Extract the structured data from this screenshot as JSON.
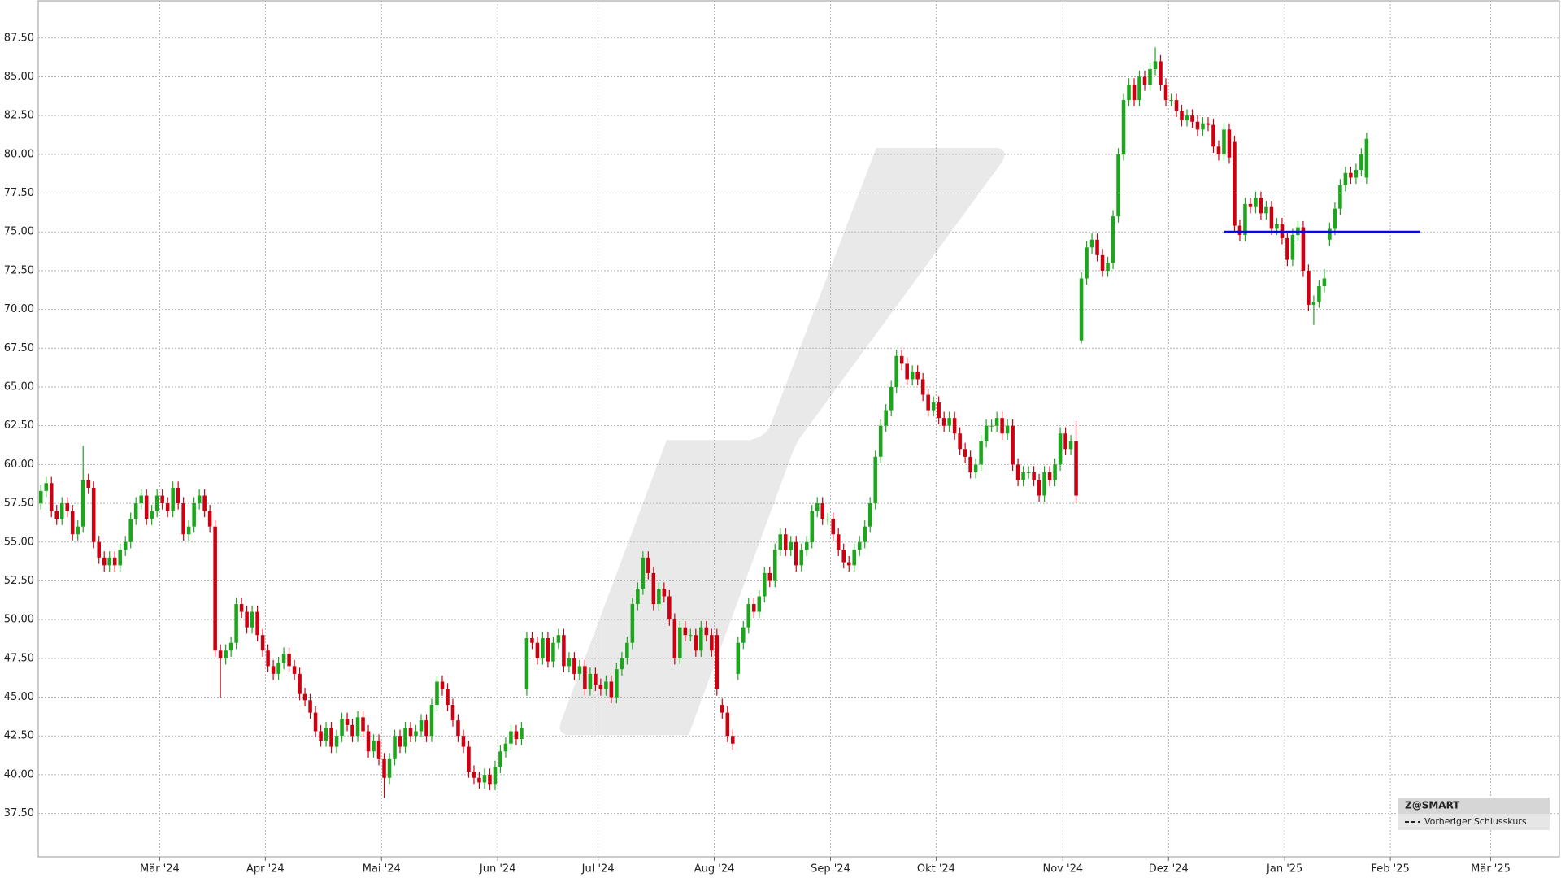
{
  "chart_data": {
    "type": "candlestick",
    "open": [
      57.5,
      58.3,
      58.8,
      57.0,
      56.5,
      57.5,
      57.0,
      55.5,
      56.0,
      59.0,
      58.5,
      55.0,
      54.0,
      53.5,
      54.0,
      53.5,
      54.5,
      55.0,
      56.5,
      57.5,
      58.0,
      56.5,
      57.0,
      58.0,
      57.5,
      57.0,
      58.5,
      57.5,
      55.5,
      56.0,
      57.5,
      58.0,
      57.0,
      56.0,
      48.0,
      47.5,
      48.0,
      48.5,
      51.0,
      50.5,
      49.5,
      50.5,
      49.0,
      48.0,
      47.0,
      46.5,
      47.2,
      47.8,
      47.0,
      46.5,
      45.2,
      44.8,
      44.0,
      42.8,
      42.2,
      43.0,
      41.8,
      42.5,
      43.6,
      43.2,
      42.5,
      43.7,
      42.8,
      41.5,
      42.2,
      41.0,
      39.8,
      41.0,
      42.5,
      41.8,
      43.0,
      42.5,
      42.8,
      43.5,
      42.5,
      44.5,
      46.0,
      45.5,
      44.5,
      43.5,
      42.5,
      41.8,
      40.2,
      39.8,
      39.5,
      40.0,
      39.4,
      40.5,
      41.5,
      42.0,
      42.8,
      42.3,
      45.5,
      48.8,
      48.5,
      47.5,
      48.8,
      47.3,
      48.5,
      49.0,
      47.0,
      47.5,
      46.5,
      47.0,
      45.5,
      46.5,
      45.8,
      45.5,
      46.0,
      45.0,
      46.8,
      47.5,
      48.5,
      51.0,
      52.0,
      54.0,
      53.0,
      51.0,
      52.0,
      51.5,
      50.0,
      47.5,
      49.5,
      49.0,
      49.0,
      48.0,
      49.5,
      49.0,
      49.0,
      44.5,
      44.0,
      42.5,
      46.5,
      48.5,
      49.5,
      51.0,
      50.5,
      51.5,
      53.0,
      52.5,
      54.5,
      55.5,
      54.5,
      55.0,
      53.5,
      54.5,
      55.0,
      57.0,
      57.5,
      56.5,
      56.5,
      55.5,
      54.5,
      53.7,
      53.5,
      54.5,
      55.0,
      56.0,
      57.5,
      60.5,
      62.5,
      63.5,
      65.0,
      67.0,
      66.5,
      65.5,
      66.0,
      65.5,
      64.5,
      63.5,
      64.0,
      63.0,
      62.5,
      63.0,
      62.0,
      61.0,
      60.5,
      59.5,
      60.0,
      61.5,
      62.5,
      62.5,
      63.0,
      62.0,
      62.5,
      60.0,
      59.0,
      59.5,
      59.5,
      59.0,
      58.0,
      59.5,
      59.0,
      60.0,
      62.0,
      61.0,
      61.5,
      68.0,
      72.0,
      74.0,
      74.5,
      73.5,
      72.5,
      73.0,
      76.0,
      80.0,
      83.5,
      84.5,
      83.5,
      85.0,
      84.5,
      85.5,
      86.0,
      84.5,
      83.5,
      83.5,
      82.8,
      82.2,
      82.5,
      82.1,
      81.6,
      82.0,
      81.9,
      80.5,
      80.0,
      81.6,
      80.8,
      75.4,
      74.8,
      76.8,
      76.6,
      77.2,
      76.2,
      76.6,
      75.2,
      75.5,
      74.6,
      73.2,
      74.8,
      75.3,
      72.5,
      70.3,
      70.5,
      71.5,
      74.5,
      75.2,
      76.5,
      78.0,
      78.8,
      78.5,
      79.0,
      78.5
    ],
    "high": [
      58.7,
      59.2,
      59.2,
      57.4,
      57.9,
      57.9,
      57.4,
      56.4,
      61.2,
      59.4,
      58.9,
      55.4,
      54.4,
      54.4,
      54.4,
      54.9,
      55.4,
      56.9,
      57.9,
      58.4,
      58.4,
      57.4,
      58.4,
      58.4,
      57.9,
      58.9,
      58.9,
      57.9,
      56.4,
      57.9,
      58.4,
      58.4,
      57.4,
      56.4,
      48.4,
      48.4,
      48.9,
      51.4,
      51.4,
      50.9,
      50.9,
      50.9,
      49.4,
      48.4,
      47.4,
      47.6,
      48.2,
      48.2,
      47.4,
      46.9,
      45.6,
      45.2,
      44.4,
      43.2,
      43.4,
      43.4,
      42.9,
      44.0,
      44.0,
      43.6,
      44.1,
      44.1,
      43.2,
      42.6,
      42.6,
      41.4,
      41.4,
      42.9,
      42.9,
      43.4,
      43.4,
      43.2,
      43.9,
      43.9,
      44.9,
      46.4,
      46.4,
      45.9,
      44.9,
      43.9,
      42.9,
      42.2,
      40.6,
      40.2,
      40.4,
      40.4,
      40.9,
      41.9,
      42.4,
      43.2,
      43.2,
      43.4,
      49.2,
      49.2,
      48.9,
      49.2,
      49.2,
      48.9,
      49.4,
      49.4,
      47.9,
      47.9,
      47.4,
      47.4,
      46.9,
      46.9,
      46.2,
      46.4,
      46.4,
      47.2,
      47.9,
      48.9,
      51.4,
      52.4,
      54.4,
      54.4,
      53.4,
      52.4,
      52.4,
      51.9,
      50.4,
      49.9,
      49.9,
      49.4,
      49.4,
      49.9,
      49.9,
      49.4,
      49.4,
      44.9,
      44.4,
      42.9,
      48.9,
      49.9,
      51.4,
      51.4,
      51.9,
      53.4,
      53.4,
      54.9,
      55.9,
      55.9,
      55.4,
      55.4,
      54.9,
      55.4,
      57.4,
      57.9,
      57.9,
      56.9,
      56.9,
      55.9,
      54.9,
      54.1,
      54.9,
      55.4,
      56.4,
      57.9,
      60.9,
      62.9,
      63.9,
      65.4,
      67.4,
      67.4,
      66.9,
      66.4,
      66.4,
      65.9,
      64.9,
      64.4,
      64.4,
      63.4,
      63.4,
      63.4,
      62.4,
      61.4,
      60.9,
      60.4,
      61.9,
      62.9,
      62.9,
      63.4,
      63.4,
      62.9,
      62.9,
      60.4,
      59.9,
      59.9,
      59.9,
      59.4,
      59.9,
      59.9,
      60.4,
      62.4,
      62.4,
      61.9,
      62.8,
      72.4,
      74.4,
      74.9,
      74.9,
      73.9,
      73.4,
      76.4,
      80.4,
      83.9,
      84.9,
      84.9,
      85.4,
      85.4,
      85.9,
      86.9,
      86.4,
      84.9,
      83.9,
      83.9,
      83.2,
      82.9,
      82.9,
      82.5,
      82.4,
      82.4,
      82.3,
      80.9,
      82.0,
      82.0,
      81.2,
      75.8,
      77.2,
      77.2,
      77.6,
      77.6,
      77.0,
      77.0,
      75.9,
      75.9,
      75.0,
      75.2,
      75.7,
      75.7,
      72.9,
      70.9,
      71.9,
      72.6,
      75.6,
      76.9,
      78.4,
      79.2,
      79.2,
      79.4,
      80.4,
      81.4
    ],
    "low": [
      57.1,
      57.9,
      56.6,
      56.1,
      56.1,
      56.6,
      55.1,
      55.1,
      55.6,
      58.1,
      54.6,
      53.6,
      53.1,
      53.1,
      53.1,
      53.1,
      54.1,
      54.6,
      56.1,
      57.1,
      56.1,
      56.1,
      56.6,
      57.1,
      56.6,
      56.6,
      57.1,
      55.1,
      55.1,
      55.6,
      57.1,
      56.6,
      55.6,
      47.6,
      45.0,
      47.1,
      47.6,
      48.1,
      50.1,
      49.1,
      49.1,
      48.6,
      47.6,
      46.6,
      46.1,
      46.1,
      46.8,
      46.6,
      46.1,
      44.8,
      44.4,
      43.6,
      42.4,
      41.8,
      41.8,
      41.4,
      41.4,
      42.1,
      42.8,
      42.1,
      42.1,
      42.4,
      41.1,
      41.1,
      40.6,
      38.5,
      39.4,
      40.6,
      41.4,
      41.4,
      42.1,
      42.1,
      42.4,
      42.1,
      42.1,
      44.1,
      45.1,
      44.1,
      43.1,
      42.1,
      41.4,
      39.8,
      39.4,
      39.1,
      39.1,
      39.0,
      39.0,
      40.1,
      41.1,
      41.6,
      41.9,
      41.9,
      45.1,
      48.1,
      47.1,
      47.1,
      46.9,
      46.9,
      48.1,
      46.6,
      46.6,
      46.1,
      46.1,
      45.1,
      45.1,
      45.4,
      45.1,
      45.1,
      44.6,
      44.6,
      46.4,
      47.1,
      48.1,
      50.6,
      51.6,
      52.6,
      50.6,
      50.6,
      51.1,
      49.6,
      47.1,
      47.1,
      48.6,
      48.6,
      47.6,
      47.6,
      48.6,
      47.6,
      45.1,
      43.6,
      42.1,
      41.6,
      46.1,
      48.1,
      49.1,
      50.1,
      50.1,
      51.1,
      52.1,
      52.1,
      54.1,
      54.1,
      54.1,
      53.1,
      53.1,
      54.1,
      54.6,
      56.6,
      56.1,
      56.1,
      55.1,
      54.1,
      53.3,
      53.1,
      53.1,
      54.1,
      54.6,
      55.6,
      57.1,
      60.1,
      62.1,
      63.1,
      64.6,
      66.1,
      65.1,
      65.1,
      65.1,
      64.1,
      63.1,
      63.1,
      62.6,
      62.1,
      62.1,
      61.6,
      60.6,
      60.1,
      59.1,
      59.1,
      59.6,
      61.1,
      62.1,
      62.1,
      61.6,
      61.6,
      59.6,
      58.6,
      58.6,
      59.1,
      58.6,
      57.6,
      57.6,
      58.6,
      58.6,
      59.6,
      60.6,
      60.6,
      57.5,
      67.8,
      71.6,
      73.6,
      73.1,
      72.1,
      72.1,
      72.6,
      75.6,
      79.6,
      83.1,
      83.1,
      83.1,
      84.1,
      84.1,
      85.1,
      84.1,
      83.1,
      83.1,
      82.4,
      81.8,
      81.8,
      81.7,
      81.2,
      81.2,
      81.5,
      80.1,
      79.6,
      79.6,
      79.4,
      75.0,
      74.4,
      74.4,
      76.2,
      76.2,
      75.8,
      75.8,
      74.8,
      74.8,
      74.2,
      72.8,
      72.8,
      74.4,
      72.1,
      69.9,
      69.0,
      70.1,
      71.1,
      74.1,
      74.8,
      76.1,
      77.6,
      78.1,
      78.1,
      78.6,
      78.1
    ],
    "close": [
      58.3,
      58.8,
      57.0,
      56.5,
      57.5,
      57.0,
      55.5,
      56.0,
      59.0,
      58.5,
      55.0,
      54.0,
      53.5,
      54.0,
      53.5,
      54.5,
      55.0,
      56.5,
      57.5,
      58.0,
      56.5,
      57.0,
      58.0,
      57.5,
      57.0,
      58.5,
      57.5,
      55.5,
      56.0,
      57.5,
      58.0,
      57.0,
      56.0,
      48.0,
      47.5,
      48.0,
      48.5,
      51.0,
      50.5,
      49.5,
      50.5,
      49.0,
      48.0,
      47.0,
      46.5,
      47.2,
      47.8,
      47.0,
      46.5,
      45.2,
      44.8,
      44.0,
      42.8,
      42.2,
      43.0,
      41.8,
      42.5,
      43.6,
      43.2,
      42.5,
      43.7,
      42.8,
      41.5,
      42.2,
      41.0,
      39.8,
      41.0,
      42.5,
      41.8,
      43.0,
      42.5,
      42.8,
      43.5,
      42.5,
      44.5,
      46.0,
      45.5,
      44.5,
      43.5,
      42.5,
      41.8,
      40.2,
      39.8,
      39.5,
      40.0,
      39.4,
      40.5,
      41.5,
      42.0,
      42.8,
      42.3,
      43.0,
      48.8,
      48.5,
      47.5,
      48.8,
      47.3,
      48.5,
      49.0,
      47.0,
      47.5,
      46.5,
      47.0,
      45.5,
      46.5,
      45.8,
      45.5,
      46.0,
      45.0,
      46.8,
      47.5,
      48.5,
      51.0,
      52.0,
      54.0,
      53.0,
      51.0,
      52.0,
      51.5,
      50.0,
      47.5,
      49.5,
      49.0,
      49.0,
      48.0,
      49.5,
      49.0,
      48.0,
      45.5,
      44.0,
      42.5,
      42.0,
      48.5,
      49.5,
      51.0,
      50.5,
      51.5,
      53.0,
      52.5,
      54.5,
      55.5,
      54.5,
      55.0,
      53.5,
      54.5,
      55.0,
      57.0,
      57.5,
      56.5,
      56.5,
      55.5,
      54.5,
      53.7,
      53.5,
      54.5,
      55.0,
      56.0,
      57.5,
      60.5,
      62.5,
      63.5,
      65.0,
      67.0,
      66.5,
      65.5,
      66.0,
      65.5,
      64.5,
      63.5,
      64.0,
      63.0,
      62.5,
      63.0,
      62.0,
      61.0,
      60.5,
      59.5,
      60.0,
      61.5,
      62.5,
      62.5,
      63.0,
      62.0,
      62.5,
      60.0,
      59.0,
      59.5,
      59.5,
      59.0,
      58.0,
      59.5,
      59.0,
      60.0,
      62.0,
      61.0,
      61.5,
      58.0,
      72.0,
      74.0,
      74.5,
      73.5,
      72.5,
      73.0,
      76.0,
      80.0,
      83.5,
      84.5,
      83.5,
      85.0,
      84.5,
      85.5,
      86.0,
      84.5,
      83.5,
      83.5,
      82.8,
      82.2,
      82.5,
      82.1,
      81.6,
      82.0,
      81.9,
      80.5,
      80.0,
      81.6,
      79.8,
      75.4,
      74.8,
      76.8,
      76.6,
      77.2,
      76.2,
      76.6,
      75.2,
      75.5,
      74.6,
      73.2,
      74.8,
      75.3,
      72.5,
      70.3,
      70.5,
      71.5,
      72.0,
      75.2,
      76.5,
      78.0,
      78.8,
      78.5,
      79.0,
      80.0,
      81.0
    ],
    "up_color": "#1ea51e",
    "down_color": "#cc0011",
    "reference_line": {
      "value": 75.0,
      "x": [
        224.5,
        261.6
      ],
      "color": "#0a0ad2"
    },
    "legend": {
      "title": "Z@SMART",
      "entries": [
        "Vorheriger Schlusskurs"
      ]
    },
    "xlim": [
      0,
      288
    ],
    "xticks": [
      {
        "value": 23,
        "label": "Mär '24"
      },
      {
        "value": 43,
        "label": "Apr '24"
      },
      {
        "value": 65,
        "label": "Mai '24"
      },
      {
        "value": 87,
        "label": "Jun '24"
      },
      {
        "value": 106,
        "label": "Jul '24"
      },
      {
        "value": 128,
        "label": "Aug '24"
      },
      {
        "value": 150,
        "label": "Sep '24"
      },
      {
        "value": 170,
        "label": "Okt '24"
      },
      {
        "value": 194,
        "label": "Nov '24"
      },
      {
        "value": 214,
        "label": "Dez '24"
      },
      {
        "value": 236,
        "label": "Jan '25"
      },
      {
        "value": 256,
        "label": "Feb '25"
      },
      {
        "value": 275,
        "label": "Mär '25"
      }
    ],
    "ylim": [
      34.7,
      89.9
    ],
    "yticks": [
      {
        "value": 37.5,
        "label": "37.50"
      },
      {
        "value": 40,
        "label": "40.00"
      },
      {
        "value": 42.5,
        "label": "42.50"
      },
      {
        "value": 45,
        "label": "45.00"
      },
      {
        "value": 47.5,
        "label": "47.50"
      },
      {
        "value": 50,
        "label": "50.00"
      },
      {
        "value": 52.5,
        "label": "52.50"
      },
      {
        "value": 55,
        "label": "55.00"
      },
      {
        "value": 57.5,
        "label": "57.50"
      },
      {
        "value": 60,
        "label": "60.00"
      },
      {
        "value": 62.5,
        "label": "62.50"
      },
      {
        "value": 65,
        "label": "65.00"
      },
      {
        "value": 67.5,
        "label": "67.50"
      },
      {
        "value": 70,
        "label": "70.00"
      },
      {
        "value": 72.5,
        "label": "72.50"
      },
      {
        "value": 75,
        "label": "75.00"
      },
      {
        "value": 77.5,
        "label": "77.50"
      },
      {
        "value": 80,
        "label": "80.00"
      },
      {
        "value": 82.5,
        "label": "82.50"
      },
      {
        "value": 85,
        "label": "85.00"
      },
      {
        "value": 87.5,
        "label": "87.50"
      }
    ],
    "grid": true
  }
}
